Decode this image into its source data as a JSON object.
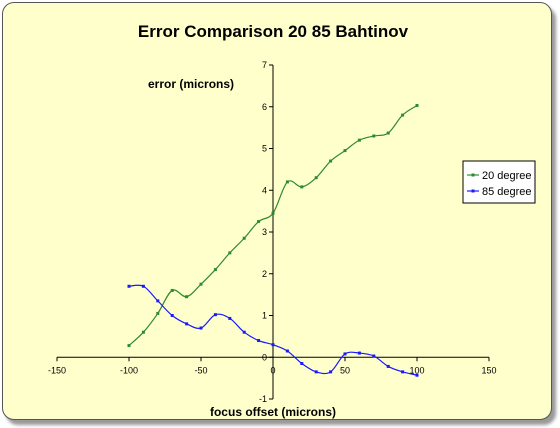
{
  "chart_data": {
    "type": "line",
    "title": "Error Comparison 20 85 Bahtinov",
    "xlabel": "focus offset (microns)",
    "ylabel": "error (microns)",
    "xlim": [
      -150,
      150
    ],
    "ylim": [
      -1,
      7
    ],
    "xticks": [
      -150,
      -100,
      -50,
      0,
      50,
      100,
      150
    ],
    "yticks": [
      -1,
      0,
      1,
      2,
      3,
      4,
      5,
      6,
      7
    ],
    "grid": false,
    "legend": "right",
    "background": "#ffffcc",
    "series": [
      {
        "name": "20 degree",
        "color": "#2e8b2e",
        "x": [
          -100,
          -90,
          -80,
          -70,
          -60,
          -50,
          -40,
          -30,
          -20,
          -10,
          0,
          10,
          20,
          30,
          40,
          50,
          60,
          70,
          80,
          90,
          100
        ],
        "y": [
          0.28,
          0.6,
          1.05,
          1.6,
          1.45,
          1.75,
          2.1,
          2.5,
          2.85,
          3.25,
          3.45,
          4.2,
          4.08,
          4.3,
          4.7,
          4.95,
          5.2,
          5.3,
          5.37,
          5.8,
          6.03
        ]
      },
      {
        "name": "85 degree",
        "color": "#1a1aff",
        "x": [
          -100,
          -90,
          -80,
          -70,
          -60,
          -50,
          -40,
          -30,
          -20,
          -10,
          0,
          10,
          20,
          30,
          40,
          50,
          60,
          70,
          80,
          90,
          100
        ],
        "y": [
          1.7,
          1.7,
          1.35,
          1.0,
          0.8,
          0.7,
          1.02,
          0.93,
          0.6,
          0.4,
          0.3,
          0.15,
          -0.15,
          -0.35,
          -0.35,
          0.08,
          0.1,
          0.03,
          -0.22,
          -0.35,
          -0.43
        ]
      }
    ]
  }
}
